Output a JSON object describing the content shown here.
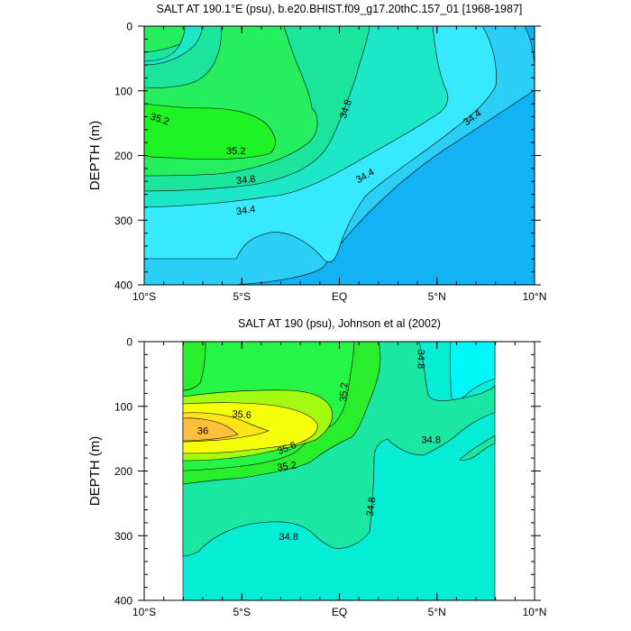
{
  "chart_data": [
    {
      "type": "contour",
      "title": "SALT AT 190.1°E (psu), b.e20.BHIST.f09_g17.20thC.157_01 [1968-1987]",
      "ylabel": "DEPTH (m)",
      "x_ticks": [
        {
          "value": -10,
          "label": "10°S"
        },
        {
          "value": -5,
          "label": "5°S"
        },
        {
          "value": 0,
          "label": "EQ"
        },
        {
          "value": 5,
          "label": "5°N"
        },
        {
          "value": 10,
          "label": "10°N"
        }
      ],
      "y_ticks": [
        {
          "value": 0,
          "label": "0"
        },
        {
          "value": 100,
          "label": "100"
        },
        {
          "value": 200,
          "label": "200"
        },
        {
          "value": 300,
          "label": "300"
        },
        {
          "value": 400,
          "label": "400"
        }
      ],
      "xlim": [
        -10,
        10
      ],
      "ylim": [
        400,
        0
      ],
      "fill_levels": [
        {
          "range": "< 34.2",
          "color": "#11b3f5"
        },
        {
          "range": "34.2-34.4",
          "color": "#2bcff5"
        },
        {
          "range": "34.4-34.6",
          "color": "#36e9ff"
        },
        {
          "range": "34.6-34.8",
          "color": "#1ce8c8"
        },
        {
          "range": "34.8-35.0",
          "color": "#1be49c"
        },
        {
          "range": "35.0-35.2",
          "color": "#25ef5f"
        },
        {
          "range": "> 35.2",
          "color": "#1ef323"
        }
      ],
      "contour_labels": [
        {
          "text": "35.2",
          "x": -9.2,
          "y": 143,
          "angle": 18
        },
        {
          "text": "34.8",
          "x": 0.3,
          "y": 128,
          "angle": -72
        },
        {
          "text": "34.4",
          "x": 6.8,
          "y": 141,
          "angle": -36
        },
        {
          "text": "35.2",
          "x": -5.3,
          "y": 192,
          "angle": 0
        },
        {
          "text": "34.8",
          "x": -4.8,
          "y": 237,
          "angle": -6
        },
        {
          "text": "34.4",
          "x": 1.3,
          "y": 231,
          "angle": -30
        },
        {
          "text": "34.4",
          "x": -4.8,
          "y": 284,
          "angle": -8
        }
      ]
    },
    {
      "type": "contour",
      "title": "SALT AT 190 (psu), Johnson et al (2002)",
      "ylabel": "DEPTH (m)",
      "x_ticks": [
        {
          "value": -10,
          "label": "10°S"
        },
        {
          "value": -5,
          "label": "5°S"
        },
        {
          "value": 0,
          "label": "EQ"
        },
        {
          "value": 5,
          "label": "5°N"
        },
        {
          "value": 10,
          "label": "10°N"
        }
      ],
      "y_ticks": [
        {
          "value": 0,
          "label": "0"
        },
        {
          "value": 100,
          "label": "100"
        },
        {
          "value": 200,
          "label": "200"
        },
        {
          "value": 300,
          "label": "300"
        },
        {
          "value": 400,
          "label": "400"
        }
      ],
      "xlim": [
        -10,
        10
      ],
      "ylim": [
        400,
        0
      ],
      "data_xrange": [
        -8,
        8
      ],
      "fill_levels": [
        {
          "range": "34.4-34.6",
          "color": "#00f7f7"
        },
        {
          "range": "34.6-34.8",
          "color": "#06edd5"
        },
        {
          "range": "34.8-35.0",
          "color": "#1ae7a2"
        },
        {
          "range": "35.0-35.2",
          "color": "#28ee2c"
        },
        {
          "range": "35.2-35.4",
          "color": "#25f545"
        },
        {
          "range": "35.4-35.6",
          "color": "#a4fb10"
        },
        {
          "range": "35.6-35.8",
          "color": "#f6ff0b"
        },
        {
          "range": "35.8-36.0",
          "color": "#ffe41a"
        },
        {
          "range": "> 36.0",
          "color": "#fdc03a"
        }
      ],
      "contour_labels": [
        {
          "text": "34.8",
          "x": 4.2,
          "y": 27,
          "angle": 90
        },
        {
          "text": "35.2",
          "x": 0.2,
          "y": 78,
          "angle": -86
        },
        {
          "text": "35.6",
          "x": -5.0,
          "y": 112,
          "angle": 4
        },
        {
          "text": "36",
          "x": -7.0,
          "y": 137,
          "angle": 0
        },
        {
          "text": "35.6",
          "x": -2.7,
          "y": 164,
          "angle": -22
        },
        {
          "text": "34.8",
          "x": 4.7,
          "y": 151,
          "angle": 0
        },
        {
          "text": "35.2",
          "x": -2.7,
          "y": 192,
          "angle": -8
        },
        {
          "text": "34.8",
          "x": 1.6,
          "y": 255,
          "angle": -82
        },
        {
          "text": "34.8",
          "x": -2.6,
          "y": 301,
          "angle": 0
        }
      ]
    }
  ]
}
